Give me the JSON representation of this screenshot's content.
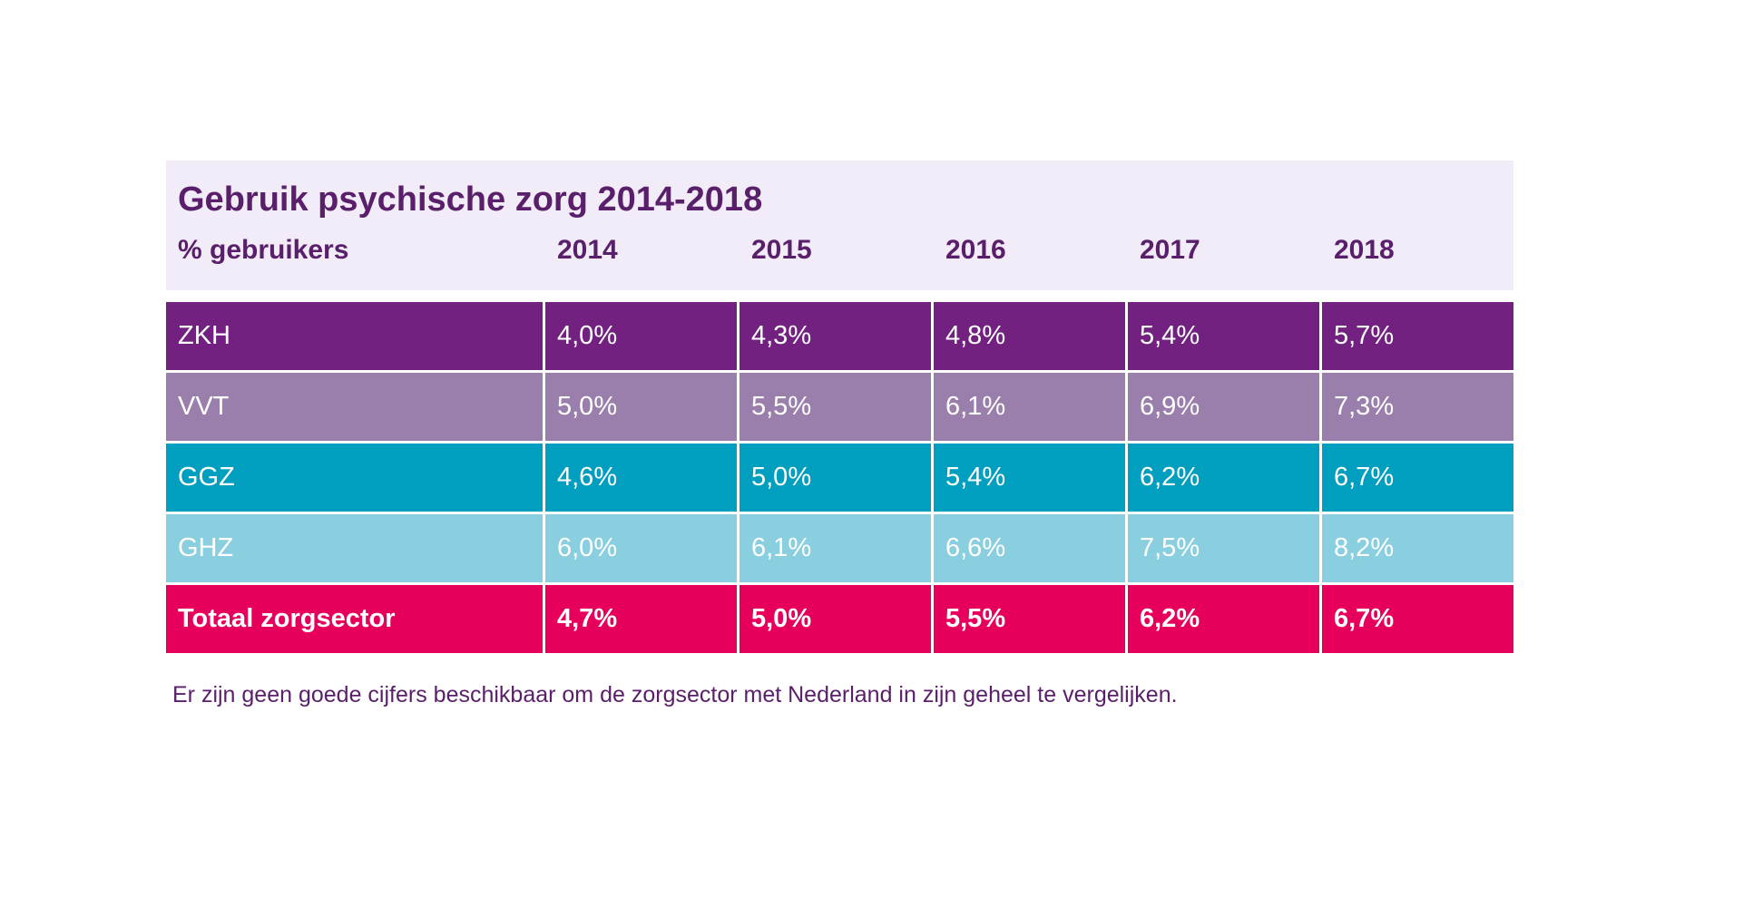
{
  "chart_data": {
    "type": "table",
    "title": "Gebruik psychische zorg 2014-2018",
    "row_header_label": "% gebruikers",
    "columns": [
      "2014",
      "2015",
      "2016",
      "2017",
      "2018"
    ],
    "rows": [
      {
        "label": "ZKH",
        "values": [
          "4,0%",
          "4,3%",
          "4,8%",
          "5,4%",
          "5,7%"
        ],
        "color": "#722180",
        "total": false
      },
      {
        "label": "VVT",
        "values": [
          "5,0%",
          "5,5%",
          "6,1%",
          "6,9%",
          "7,3%"
        ],
        "color": "#9a7fad",
        "total": false
      },
      {
        "label": "GGZ",
        "values": [
          "4,6%",
          "5,0%",
          "5,4%",
          "6,2%",
          "6,7%"
        ],
        "color": "#009ebf",
        "total": false
      },
      {
        "label": "GHZ",
        "values": [
          "6,0%",
          "6,1%",
          "6,6%",
          "7,5%",
          "8,2%"
        ],
        "color": "#89cfe0",
        "total": false
      },
      {
        "label": "Totaal zorgsector",
        "values": [
          "4,7%",
          "5,0%",
          "5,5%",
          "6,2%",
          "6,7%"
        ],
        "color": "#e6005c",
        "total": true
      }
    ],
    "footnote": "Er zijn geen goede cijfers beschikbaar om de zorgsector met Nederland in zijn geheel te vergelijken.",
    "colors": {
      "header_background": "#f1ecf7",
      "header_text": "#5a1f6a",
      "cell_text": "#ffffff"
    }
  }
}
